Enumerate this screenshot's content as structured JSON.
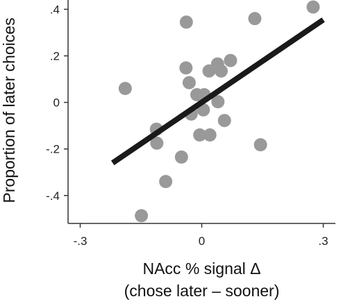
{
  "chart_data": {
    "type": "scatter",
    "title": "",
    "xlabel": "NAcc % signal Δ",
    "xlabel_line2": "(chose later – sooner)",
    "ylabel": "Proportion of later choices",
    "xlim": [
      -0.33,
      0.33
    ],
    "ylim": [
      -0.52,
      0.44
    ],
    "x_ticks": [
      -0.3,
      0,
      0.3
    ],
    "x_tick_labels": [
      "-.3",
      "0",
      ".3"
    ],
    "y_ticks": [
      0.4,
      0.2,
      0,
      -0.2,
      -0.4
    ],
    "y_tick_labels": [
      ".4",
      ".2",
      "0",
      "-.2",
      "-.4"
    ],
    "grid": false,
    "legend": "none",
    "colors": {
      "points": "#999999",
      "fit_line": "#1a1a1a",
      "axis": "#333333"
    },
    "series": [
      {
        "values": [
          {
            "x": 0.275,
            "y": 0.41
          },
          {
            "x": 0.131,
            "y": 0.36
          },
          {
            "x": -0.038,
            "y": 0.345
          },
          {
            "x": 0.071,
            "y": 0.18
          },
          {
            "x": 0.039,
            "y": 0.165
          },
          {
            "x": 0.018,
            "y": 0.135
          },
          {
            "x": 0.048,
            "y": 0.135
          },
          {
            "x": -0.039,
            "y": 0.148
          },
          {
            "x": -0.189,
            "y": 0.06
          },
          {
            "x": -0.031,
            "y": 0.085
          },
          {
            "x": -0.012,
            "y": 0.033
          },
          {
            "x": 0.006,
            "y": 0.033
          },
          {
            "x": 0.04,
            "y": 0.003
          },
          {
            "x": -0.026,
            "y": -0.05
          },
          {
            "x": 0.004,
            "y": -0.032
          },
          {
            "x": 0.056,
            "y": -0.078
          },
          {
            "x": -0.112,
            "y": -0.115
          },
          {
            "x": -0.005,
            "y": -0.14
          },
          {
            "x": 0.02,
            "y": -0.14
          },
          {
            "x": -0.111,
            "y": -0.175
          },
          {
            "x": 0.145,
            "y": -0.182
          },
          {
            "x": -0.05,
            "y": -0.235
          },
          {
            "x": -0.089,
            "y": -0.34
          },
          {
            "x": -0.149,
            "y": -0.487
          }
        ]
      }
    ],
    "fit_line": {
      "x": [
        -0.22,
        0.3
      ],
      "y": [
        -0.26,
        0.355
      ]
    }
  }
}
